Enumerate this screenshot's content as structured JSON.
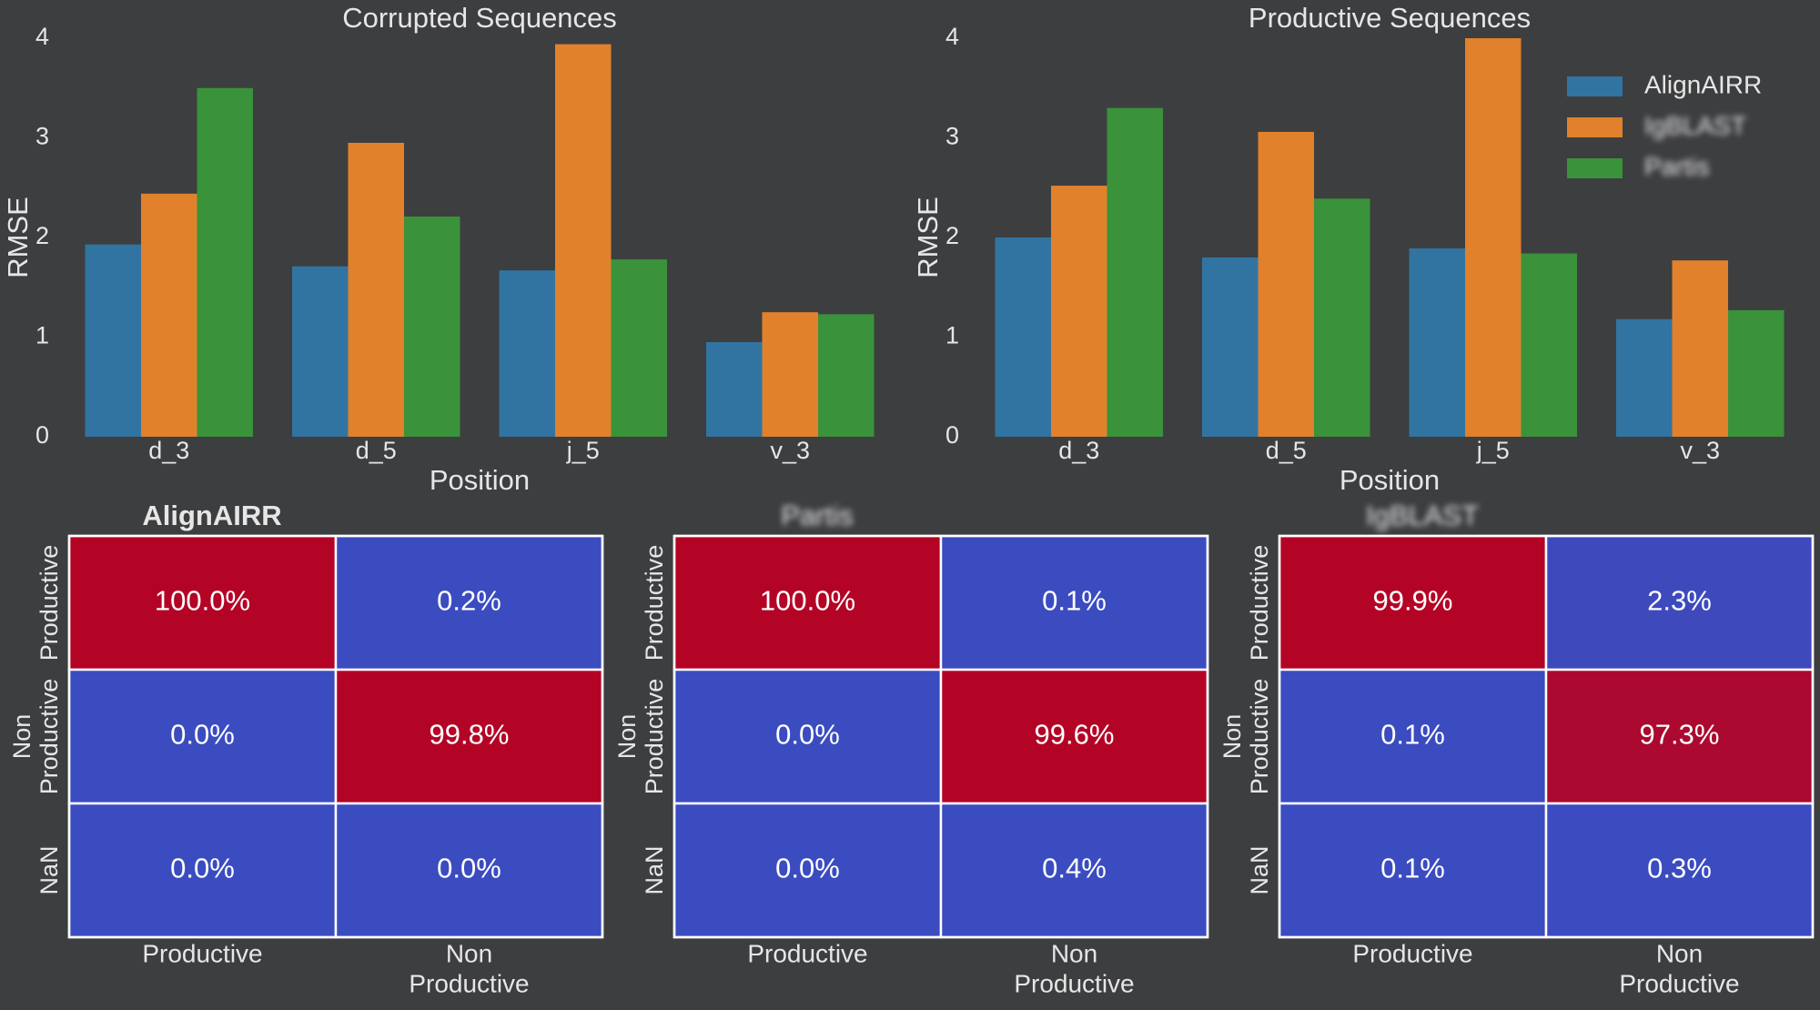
{
  "chart_data": [
    {
      "type": "bar",
      "title": "Corrupted Sequences",
      "xlabel": "Position",
      "ylabel": "RMSE",
      "ylim": [
        0,
        4
      ],
      "yticks": [
        "0",
        "1",
        "2",
        "3",
        "4"
      ],
      "categories": [
        "d_3",
        "d_5",
        "j_5",
        "v_3"
      ],
      "series": [
        {
          "name": "AlignAIRR",
          "color": "#3274a1",
          "values": [
            1.93,
            1.71,
            1.67,
            0.95
          ]
        },
        {
          "name": "IgBLAST",
          "color": "#e1812c",
          "values": [
            2.44,
            2.95,
            3.94,
            1.25
          ]
        },
        {
          "name": "Partis",
          "color": "#3a923a",
          "values": [
            3.5,
            2.21,
            1.78,
            1.23
          ]
        }
      ]
    },
    {
      "type": "bar",
      "title": "Productive Sequences",
      "xlabel": "Position",
      "ylabel": "RMSE",
      "ylim": [
        0,
        4
      ],
      "yticks": [
        "0",
        "1",
        "2",
        "3",
        "4"
      ],
      "categories": [
        "d_3",
        "d_5",
        "j_5",
        "v_3"
      ],
      "legend_position": "top-right",
      "series": [
        {
          "name": "AlignAIRR",
          "color": "#3274a1",
          "values": [
            2.0,
            1.8,
            1.89,
            1.18
          ]
        },
        {
          "name": "IgBLAST",
          "color": "#e1812c",
          "values": [
            2.52,
            3.06,
            4.0,
            1.77
          ]
        },
        {
          "name": "Partis",
          "color": "#3a923a",
          "values": [
            3.3,
            2.39,
            1.84,
            1.27
          ]
        }
      ]
    },
    {
      "type": "heatmap",
      "title": "AlignAIRR",
      "rows": [
        "Productive",
        "Non Productive",
        "NaN"
      ],
      "columns": [
        "Productive",
        "Non Productive"
      ],
      "values": [
        [
          100.0,
          0.2
        ],
        [
          0.0,
          99.8
        ],
        [
          0.0,
          0.0
        ]
      ],
      "labels": [
        [
          "100.0%",
          "0.2%"
        ],
        [
          "0.0%",
          "99.8%"
        ],
        [
          "0.0%",
          "0.0%"
        ]
      ]
    },
    {
      "type": "heatmap",
      "title": "Partis",
      "rows": [
        "Productive",
        "Non Productive",
        "NaN"
      ],
      "columns": [
        "Productive",
        "Non Productive"
      ],
      "values": [
        [
          100.0,
          0.1
        ],
        [
          0.0,
          99.6
        ],
        [
          0.0,
          0.4
        ]
      ],
      "labels": [
        [
          "100.0%",
          "0.1%"
        ],
        [
          "0.0%",
          "99.6%"
        ],
        [
          "0.0%",
          "0.4%"
        ]
      ]
    },
    {
      "type": "heatmap",
      "title": "IgBLAST",
      "rows": [
        "Productive",
        "Non Productive",
        "NaN"
      ],
      "columns": [
        "Productive",
        "Non Productive"
      ],
      "values": [
        [
          99.9,
          2.3
        ],
        [
          0.1,
          97.3
        ],
        [
          0.1,
          0.3
        ]
      ],
      "labels": [
        [
          "99.9%",
          "2.3%"
        ],
        [
          "0.1%",
          "97.3%"
        ],
        [
          "0.1%",
          "0.3%"
        ]
      ]
    }
  ],
  "colors": {
    "background": "#3d3e40",
    "text": "#e6e6e6",
    "heat_low": "#3b4cc0",
    "heat_high": "#b40426"
  }
}
